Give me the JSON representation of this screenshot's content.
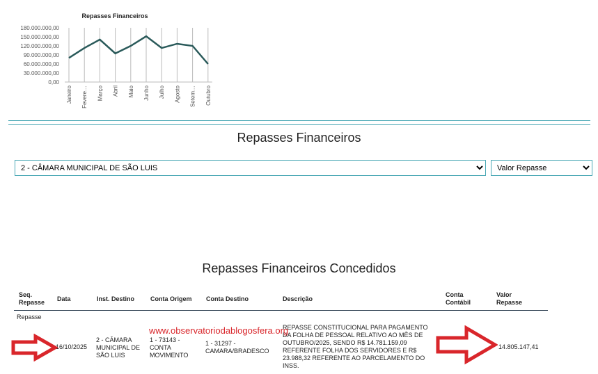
{
  "chart_data": {
    "type": "line",
    "title": "Repasses Financeiros",
    "categories": [
      "Janeiro",
      "Fevere…",
      "Março",
      "Abril",
      "Maio",
      "Junho",
      "Julho",
      "Agosto",
      "Setem…",
      "Outubro"
    ],
    "values": [
      80000000,
      113000000,
      141000000,
      95000000,
      120000000,
      152000000,
      113000000,
      127000000,
      120000000,
      60000000
    ],
    "yticks": [
      "0,00",
      "30.000.000,00",
      "60.000.000,00",
      "90.000.000,00",
      "120.000.000,00",
      "150.000.000,00",
      "180.000.000,00"
    ],
    "ylim": [
      0,
      180000000
    ],
    "grid": "vertical",
    "line_color": "#2a5a5a"
  },
  "section_title": "Repasses Financeiros",
  "filters": {
    "entity": "2 - CÂMARA MUNICIPAL DE SÃO LUIS",
    "metric": "Valor Repasse"
  },
  "table_title": "Repasses Financeiros Concedidos",
  "table": {
    "headers": [
      "Seq. Repasse",
      "Data",
      "Inst. Destino",
      "Conta Origem",
      "Conta Destino",
      "Descrição",
      "Conta Contábil",
      "Valor Repasse"
    ],
    "group": "Repasse",
    "rows": [
      {
        "seq": "",
        "data": "16/10/2025",
        "inst": "2 - CÂMARA MUNICIPAL DE SÃO LUIS",
        "origem": "1 - 73143 - CONTA MOVIMENTO",
        "destino": "1 - 31297 - CAMARA/BRADESCO",
        "descricao": "REPASSE CONSTITUCIONAL PARA PAGAMENTO DA FOLHA DE PESSOAL RELATIVO AO MÊS DE OUTUBRO/2025, SENDO R$ 14.781.159,09 REFERENTE FOLHA DOS SERVIDORES E R$ 23.988,32 REFERENTE AO PARCELAMENTO DO INSS.",
        "contabil": "",
        "valor": "14.805.147,41"
      }
    ]
  },
  "watermark": "www.observatoriodablogosfera.org",
  "annotation_color": "#d9262b"
}
